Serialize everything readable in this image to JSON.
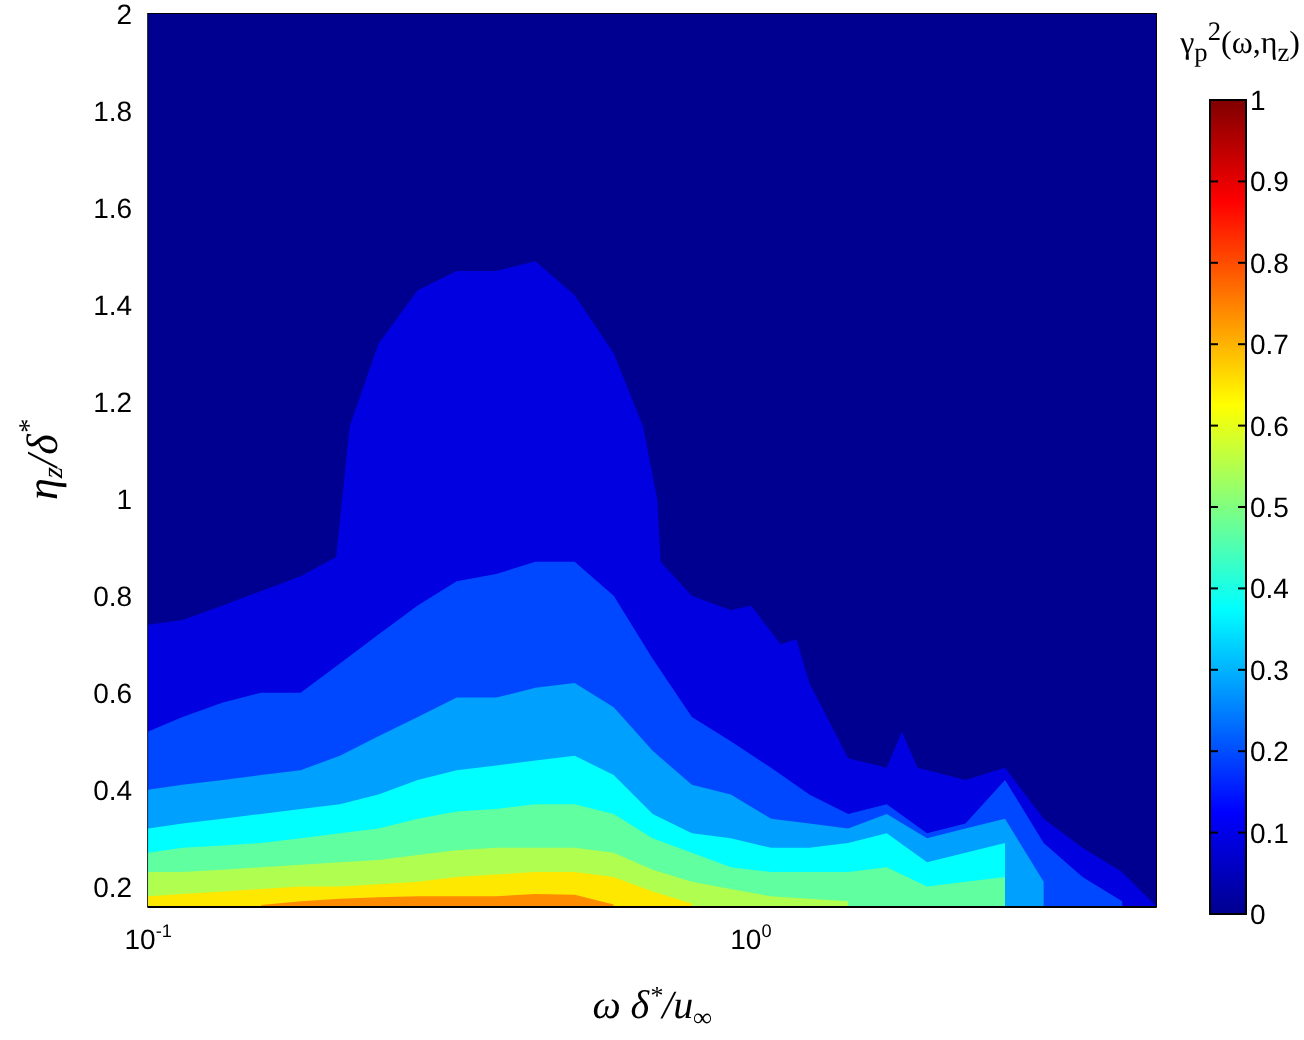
{
  "chart_data": {
    "type": "area",
    "xlabel": "ω δ$^{*}$/u$_{∞}$",
    "ylabel": "η$_{z}$/δ$^{*}$",
    "clabel": "γ$_{p}$$^{2}$(ω,η$_{z}$)",
    "log": "x",
    "xlim": [
      0.1,
      4.7
    ],
    "xticks": [
      {
        "value": 0.1,
        "label": "10$^{-1}$"
      },
      {
        "value": 1,
        "label": "10$^{0}$"
      }
    ],
    "ylim": [
      0.16,
      2
    ],
    "yticks": [
      0.2,
      0.4,
      0.6,
      0.8,
      1,
      1.2,
      1.4,
      1.6,
      1.8,
      2
    ],
    "bands": [
      {
        "axis": "y",
        "from": 0.16,
        "to": 2,
        "color": "#000090"
      }
    ],
    "clim": [
      0,
      1
    ],
    "cticks": [
      0,
      0.1,
      0.2,
      0.3,
      0.4,
      0.5,
      0.6,
      0.7,
      0.8,
      0.9,
      1
    ],
    "x": [
      0.1,
      0.114,
      0.133,
      0.154,
      0.179,
      0.208,
      0.241,
      0.28,
      0.325,
      0.378,
      0.439,
      0.51,
      0.592,
      0.687,
      0.798,
      0.926,
      1.08,
      1.25,
      1.45,
      1.68,
      1.96,
      2.27,
      2.64,
      3.06,
      3.55,
      4.13
    ],
    "series": [
      {
        "color": "#0000e0",
        "x": [
          0.1,
          0.114,
          0.133,
          0.154,
          0.179,
          0.205,
          0.216,
          0.241,
          0.28,
          0.325,
          0.378,
          0.439,
          0.51,
          0.592,
          0.662,
          0.699,
          0.708,
          0.798,
          0.926,
          1.0,
          1.12,
          1.19,
          1.25,
          1.45,
          1.68,
          1.78,
          1.89,
          2.27,
          2.64,
          3.06,
          3.55,
          4.13,
          4.7
        ],
        "values": [
          0.74,
          0.75,
          0.78,
          0.81,
          0.84,
          0.88,
          1.15,
          1.32,
          1.43,
          1.47,
          1.47,
          1.49,
          1.42,
          1.3,
          1.15,
          1.0,
          0.87,
          0.8,
          0.77,
          0.78,
          0.7,
          0.71,
          0.62,
          0.465,
          0.445,
          0.52,
          0.445,
          0.42,
          0.445,
          0.34,
          0.28,
          0.23,
          0.16
        ]
      },
      {
        "color": "#0048ff",
        "values": [
          0.52,
          0.55,
          0.58,
          0.6,
          0.6,
          0.66,
          0.72,
          0.78,
          0.83,
          0.845,
          0.87,
          0.87,
          0.8,
          0.67,
          0.55,
          0.5,
          0.445,
          0.39,
          0.35,
          0.37,
          0.31,
          0.33,
          0.42,
          0.29,
          0.22,
          0.17
        ]
      },
      {
        "color": "#00a0ff",
        "values": [
          0.4,
          0.41,
          0.42,
          0.43,
          0.44,
          0.47,
          0.51,
          0.55,
          0.59,
          0.59,
          0.61,
          0.62,
          0.57,
          0.48,
          0.41,
          0.39,
          0.34,
          0.33,
          0.32,
          0.35,
          0.3,
          0.32,
          0.34,
          0.21,
          null,
          null
        ]
      },
      {
        "color": "#00ffff",
        "values": [
          0.32,
          0.33,
          0.34,
          0.35,
          0.36,
          0.37,
          0.39,
          0.42,
          0.44,
          0.45,
          0.46,
          0.47,
          0.43,
          0.35,
          0.31,
          0.3,
          0.28,
          0.28,
          0.29,
          0.31,
          0.25,
          0.27,
          0.29,
          null,
          null,
          null
        ]
      },
      {
        "color": "#60ffa0",
        "values": [
          0.27,
          0.28,
          0.285,
          0.29,
          0.3,
          0.31,
          0.32,
          0.34,
          0.355,
          0.36,
          0.37,
          0.37,
          0.35,
          0.3,
          0.27,
          0.24,
          0.23,
          0.23,
          0.23,
          0.24,
          0.2,
          0.21,
          0.22,
          null,
          null,
          null
        ]
      },
      {
        "color": "#b0ff50",
        "values": [
          0.23,
          0.23,
          0.235,
          0.24,
          0.245,
          0.25,
          0.255,
          0.265,
          0.275,
          0.28,
          0.28,
          0.28,
          0.27,
          0.235,
          0.21,
          0.195,
          0.18,
          0.175,
          0.17,
          null,
          null,
          null,
          null,
          null,
          null,
          null
        ]
      },
      {
        "color": "#ffe800",
        "values": [
          0.18,
          0.185,
          0.19,
          0.195,
          0.2,
          0.2,
          0.205,
          0.21,
          0.22,
          0.225,
          0.23,
          0.23,
          0.22,
          0.19,
          0.165,
          null,
          null,
          null,
          null,
          null,
          null,
          null,
          null,
          null,
          null,
          null
        ]
      },
      {
        "color": "#ff8c00",
        "values": [
          null,
          null,
          null,
          0.162,
          0.17,
          0.175,
          0.178,
          0.18,
          0.18,
          0.18,
          0.185,
          0.183,
          0.163,
          null,
          null,
          null,
          null,
          null,
          null,
          null,
          null,
          null,
          null,
          null,
          null,
          null
        ]
      }
    ]
  }
}
